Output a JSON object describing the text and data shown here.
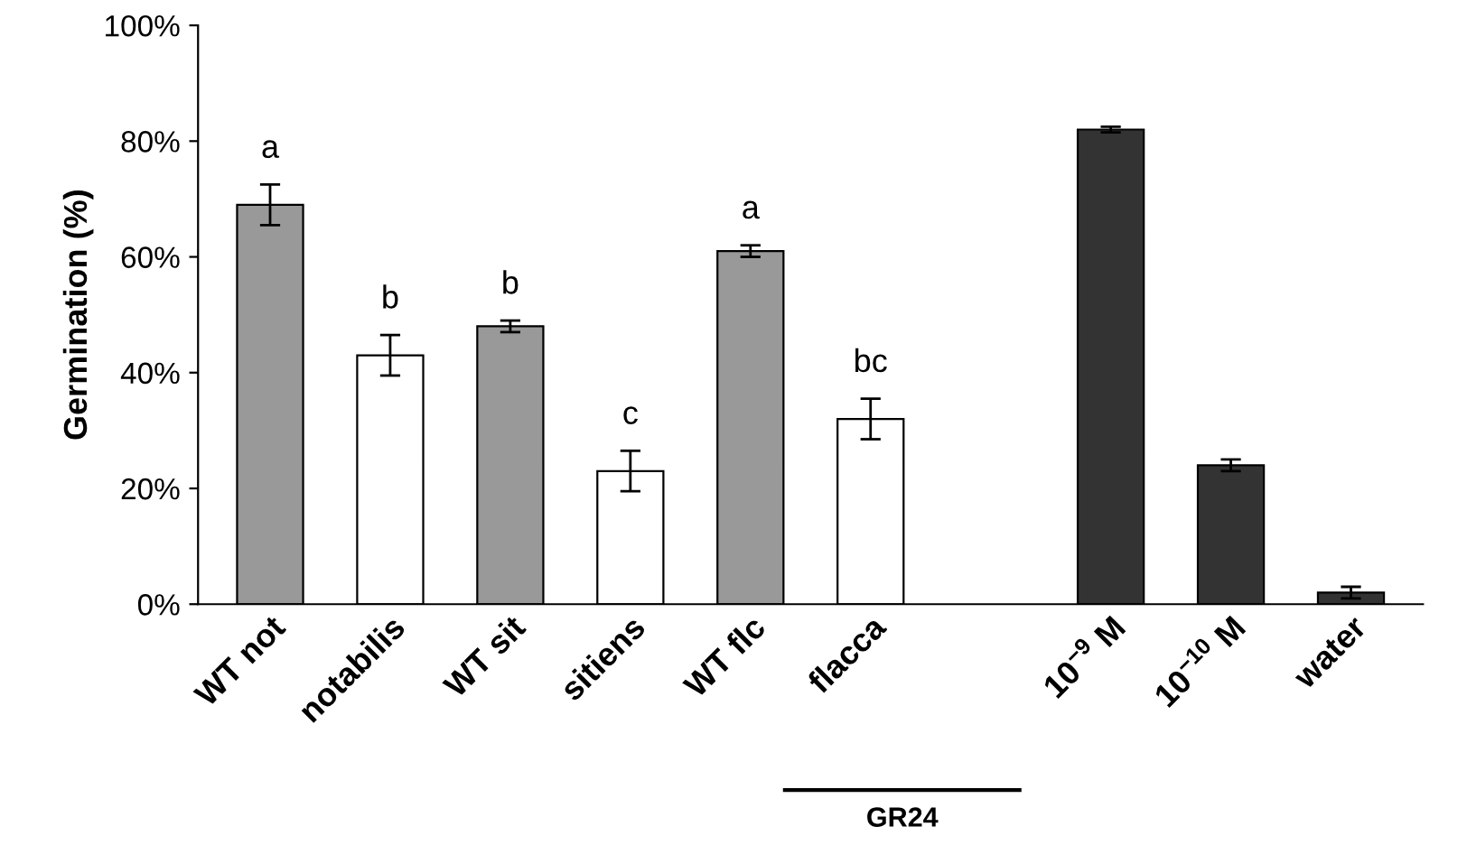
{
  "chart_data": {
    "type": "bar",
    "ylabel": "Germination (%)",
    "categories": [
      "WT not",
      "notabilis",
      "WT sit",
      "sitiens",
      "WT flc",
      "flacca",
      null,
      "10$^{−9}$ M",
      "10$^{−10}$ M",
      "water"
    ],
    "values": [
      69,
      43,
      48,
      23,
      61,
      32,
      null,
      82,
      24,
      2
    ],
    "errors": [
      3.5,
      3.5,
      1,
      3.5,
      1,
      3.5,
      null,
      0.5,
      1,
      1
    ],
    "colors": [
      "#999999",
      "#ffffff",
      "#999999",
      "#ffffff",
      "#999999",
      "#ffffff",
      "#ffffff",
      "#333333",
      "#333333",
      "#333333"
    ],
    "ylim": [
      0,
      100
    ],
    "yticks": [
      {
        "value": 0,
        "label": "0%"
      },
      {
        "value": 20,
        "label": "20%"
      },
      {
        "value": 40,
        "label": "40%"
      },
      {
        "value": 60,
        "label": "60%"
      },
      {
        "value": 80,
        "label": "80%"
      },
      {
        "value": 100,
        "label": "100%"
      }
    ],
    "grid": false,
    "legend": false,
    "annotations": [
      "a",
      "b",
      "b",
      "c",
      "a",
      "bc",
      "GR24"
    ]
  }
}
